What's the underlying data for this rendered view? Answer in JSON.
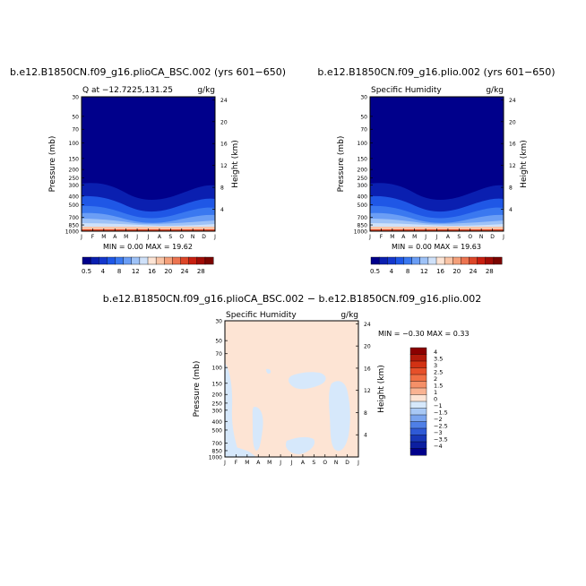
{
  "chart_data": [
    {
      "type": "heatmap",
      "title": "b.e12.B1850CN.f09_g16.plioCA_BSC.002 (yrs 601−650)",
      "subtitle_left": "Q at  −12.7225,131.25",
      "subtitle_right": "g/kg",
      "ylabel": "Pressure (mb)",
      "ylabel_right": "Height (km)",
      "stats": "MIN =    0.00 MAX =   19.62",
      "x": [
        "J",
        "F",
        "M",
        "A",
        "M",
        "J",
        "J",
        "A",
        "S",
        "O",
        "N",
        "D",
        "J"
      ],
      "pressure_ticks": [
        "30",
        "50",
        "70",
        "100",
        "150",
        "200",
        "250",
        "300",
        "400",
        "500",
        "700",
        "850",
        "1000"
      ],
      "height_ticks": [
        "24",
        "20",
        "16",
        "12",
        "8",
        "4"
      ],
      "colorbar": {
        "labels": [
          "0.5",
          "4",
          "8",
          "12",
          "16",
          "20",
          "24",
          "28"
        ],
        "colors": [
          "#00008b",
          "#0a1fb0",
          "#1437cc",
          "#1f57e6",
          "#3a78f0",
          "#6b9ef5",
          "#9ec2f7",
          "#cfe1f9",
          "#fde4d4",
          "#f9c4a6",
          "#f4a07a",
          "#ec7450",
          "#dd4628",
          "#c81f10",
          "#a00c06",
          "#7a0400"
        ]
      },
      "ylim": [
        1000,
        30
      ],
      "xlim": [
        "J",
        "J"
      ]
    },
    {
      "type": "heatmap",
      "title": "b.e12.B1850CN.f09_g16.plio.002 (yrs 601−650)",
      "subtitle_left": "Specific Humidity",
      "subtitle_right": "g/kg",
      "ylabel": "Pressure (mb)",
      "ylabel_right": "Height (km)",
      "stats": "MIN =    0.00 MAX =   19.63",
      "x": [
        "J",
        "F",
        "M",
        "A",
        "M",
        "J",
        "J",
        "A",
        "S",
        "O",
        "N",
        "D",
        "J"
      ],
      "pressure_ticks": [
        "30",
        "50",
        "70",
        "100",
        "150",
        "200",
        "250",
        "300",
        "400",
        "500",
        "700",
        "850",
        "1000"
      ],
      "height_ticks": [
        "24",
        "20",
        "16",
        "12",
        "8",
        "4"
      ],
      "colorbar": {
        "labels": [
          "0.5",
          "4",
          "8",
          "12",
          "16",
          "20",
          "24",
          "28"
        ],
        "colors": [
          "#00008b",
          "#0a1fb0",
          "#1437cc",
          "#1f57e6",
          "#3a78f0",
          "#6b9ef5",
          "#9ec2f7",
          "#cfe1f9",
          "#fde4d4",
          "#f9c4a6",
          "#f4a07a",
          "#ec7450",
          "#dd4628",
          "#c81f10",
          "#a00c06",
          "#7a0400"
        ]
      },
      "ylim": [
        1000,
        30
      ],
      "xlim": [
        "J",
        "J"
      ]
    },
    {
      "type": "heatmap",
      "title": "b.e12.B1850CN.f09_g16.plioCA_BSC.002 − b.e12.B1850CN.f09_g16.plio.002",
      "subtitle_left": "Specific Humidity",
      "subtitle_right": "g/kg",
      "ylabel": "Pressure (mb)",
      "ylabel_right": "Height (km)",
      "stats": "MIN =  −0.30 MAX =    0.33",
      "x": [
        "J",
        "F",
        "M",
        "A",
        "M",
        "J",
        "J",
        "A",
        "S",
        "O",
        "N",
        "D",
        "J"
      ],
      "pressure_ticks": [
        "30",
        "50",
        "70",
        "100",
        "150",
        "200",
        "250",
        "300",
        "400",
        "500",
        "700",
        "850",
        "1000"
      ],
      "height_ticks": [
        "24",
        "20",
        "16",
        "12",
        "8",
        "4"
      ],
      "colorbar": {
        "labels": [
          "4",
          "3.5",
          "3",
          "2.5",
          "2",
          "1.5",
          "1",
          "0",
          "−1",
          "−1.5",
          "−2",
          "−2.5",
          "−3",
          "−3.5",
          "−4"
        ],
        "colors": [
          "#8b0000",
          "#b21a0a",
          "#d23214",
          "#e6502a",
          "#f07045",
          "#f59068",
          "#f9b392",
          "#fde4d4",
          "#d6e8fb",
          "#a8c8f5",
          "#7aa4ee",
          "#4f7fe6",
          "#2f5ad6",
          "#1838b8",
          "#0c1fa0",
          "#00008b"
        ]
      },
      "ylim": [
        1000,
        30
      ],
      "xlim": [
        "J",
        "J"
      ]
    }
  ]
}
